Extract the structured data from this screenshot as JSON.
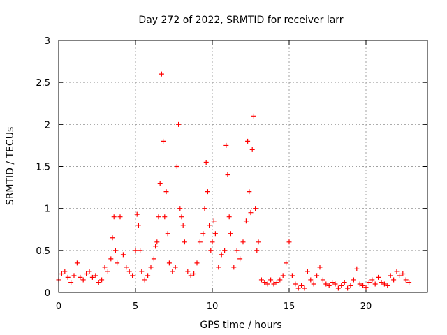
{
  "chart_data": {
    "type": "scatter",
    "title": "Day 272 of 2022, SRMTID for receiver larr",
    "xlabel": "GPS time / hours",
    "ylabel": "SRMTID / TECUs",
    "xlim": [
      0,
      24
    ],
    "ylim": [
      0,
      3
    ],
    "xticks": [
      0,
      5,
      10,
      15,
      20
    ],
    "xtick_labels": [
      "0",
      "5",
      "10",
      "15",
      "20"
    ],
    "yticks": [
      0,
      0.5,
      1,
      1.5,
      2,
      2.5,
      3
    ],
    "ytick_labels": [
      "0",
      "0.5",
      "1",
      "1.5",
      "2",
      "2.5",
      "3"
    ],
    "grid": true,
    "marker": "plus",
    "series": [
      {
        "name": "SRMTID",
        "color": "#ff0000",
        "x": [
          0.0,
          0.2,
          0.4,
          0.6,
          0.8,
          1.0,
          1.2,
          1.4,
          1.6,
          1.8,
          2.0,
          2.2,
          2.4,
          2.6,
          2.8,
          3.0,
          3.2,
          3.4,
          3.5,
          3.6,
          3.7,
          3.8,
          4.0,
          4.2,
          4.4,
          4.6,
          4.8,
          5.0,
          5.1,
          5.2,
          5.3,
          5.4,
          5.6,
          5.8,
          6.0,
          6.2,
          6.3,
          6.4,
          6.5,
          6.6,
          6.7,
          6.8,
          6.9,
          7.0,
          7.1,
          7.2,
          7.4,
          7.6,
          7.7,
          7.8,
          7.9,
          8.0,
          8.1,
          8.2,
          8.4,
          8.6,
          8.8,
          9.0,
          9.2,
          9.4,
          9.5,
          9.6,
          9.7,
          9.8,
          9.9,
          10.0,
          10.1,
          10.2,
          10.4,
          10.6,
          10.8,
          10.9,
          11.0,
          11.1,
          11.2,
          11.4,
          11.6,
          11.8,
          12.0,
          12.2,
          12.3,
          12.4,
          12.5,
          12.6,
          12.7,
          12.8,
          12.9,
          13.0,
          13.2,
          13.4,
          13.6,
          13.8,
          14.0,
          14.2,
          14.4,
          14.6,
          14.8,
          15.0,
          15.2,
          15.4,
          15.6,
          15.8,
          16.0,
          16.2,
          16.4,
          16.6,
          16.8,
          17.0,
          17.2,
          17.4,
          17.6,
          17.8,
          18.0,
          18.2,
          18.4,
          18.6,
          18.8,
          19.0,
          19.2,
          19.4,
          19.6,
          19.8,
          20.0,
          20.2,
          20.4,
          20.6,
          20.8,
          21.0,
          21.2,
          21.4,
          21.6,
          21.8,
          22.0,
          22.2,
          22.4,
          22.6,
          22.8
        ],
        "y": [
          0.15,
          0.22,
          0.25,
          0.18,
          0.12,
          0.2,
          0.35,
          0.18,
          0.15,
          0.22,
          0.25,
          0.18,
          0.2,
          0.12,
          0.15,
          0.3,
          0.25,
          0.4,
          0.65,
          0.9,
          0.5,
          0.35,
          0.9,
          0.45,
          0.3,
          0.25,
          0.2,
          0.5,
          0.93,
          0.8,
          0.5,
          0.25,
          0.15,
          0.2,
          0.3,
          0.4,
          0.55,
          0.6,
          0.9,
          1.3,
          2.6,
          1.8,
          0.9,
          1.2,
          0.7,
          0.35,
          0.25,
          0.3,
          1.5,
          2.0,
          1.0,
          0.9,
          0.8,
          0.6,
          0.25,
          0.2,
          0.22,
          0.35,
          0.6,
          0.7,
          1.0,
          1.55,
          1.2,
          0.8,
          0.5,
          0.6,
          0.85,
          0.7,
          0.3,
          0.45,
          0.5,
          1.75,
          1.4,
          0.9,
          0.7,
          0.3,
          0.5,
          0.4,
          0.6,
          0.85,
          1.8,
          1.2,
          0.95,
          1.7,
          2.1,
          1.0,
          0.5,
          0.6,
          0.15,
          0.12,
          0.1,
          0.15,
          0.1,
          0.12,
          0.15,
          0.2,
          0.35,
          0.6,
          0.2,
          0.1,
          0.05,
          0.08,
          0.05,
          0.25,
          0.15,
          0.1,
          0.2,
          0.3,
          0.15,
          0.1,
          0.08,
          0.12,
          0.1,
          0.05,
          0.08,
          0.12,
          0.05,
          0.08,
          0.15,
          0.28,
          0.1,
          0.08,
          0.06,
          0.12,
          0.15,
          0.1,
          0.18,
          0.12,
          0.1,
          0.08,
          0.2,
          0.15,
          0.25,
          0.2,
          0.22,
          0.15,
          0.12
        ]
      }
    ]
  }
}
